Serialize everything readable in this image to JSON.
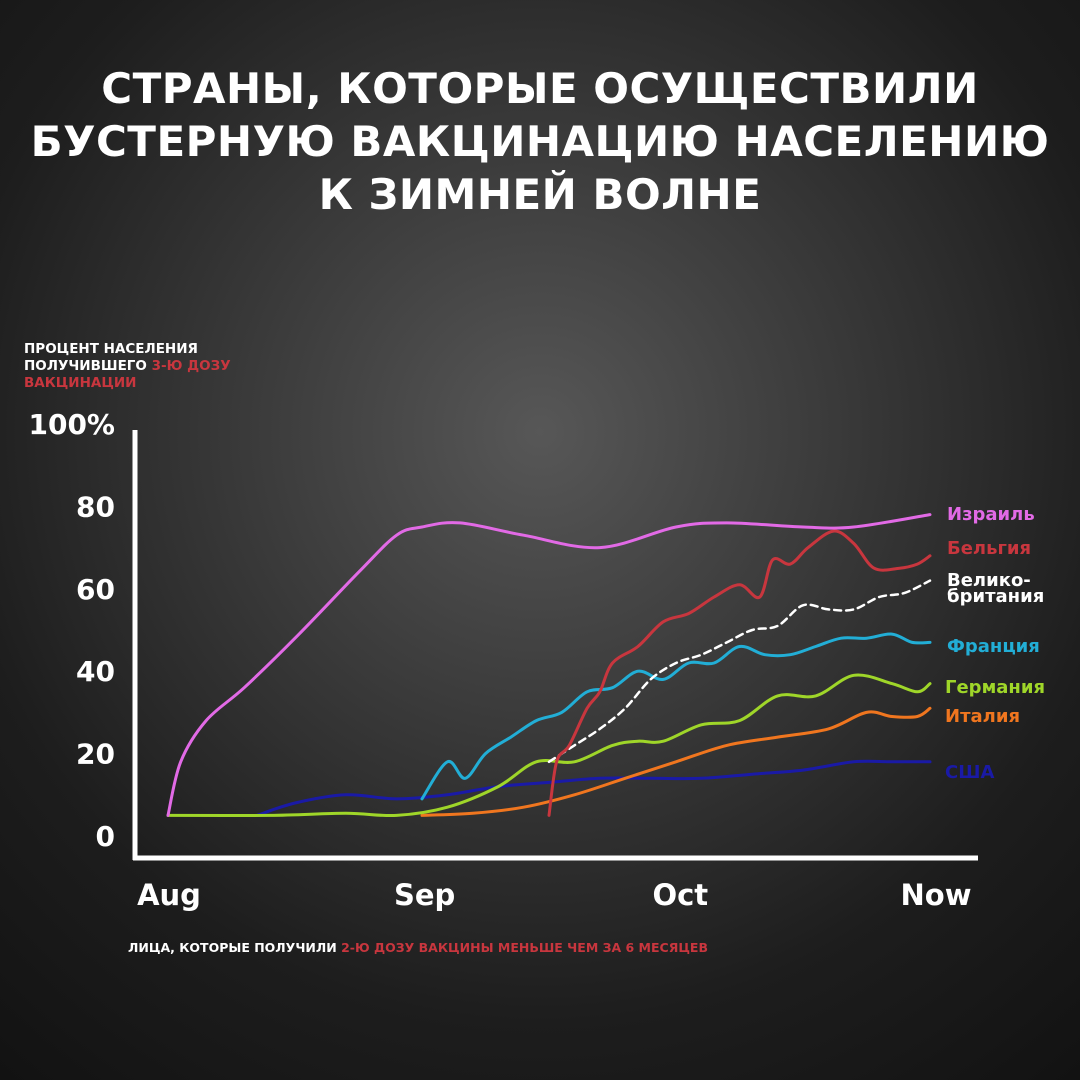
{
  "title": {
    "line1": "СТРАНЫ, КОТОРЫЕ ОСУЩЕСТВИЛИ",
    "line2": "БУСТЕРНУЮ ВАКЦИНАЦИЮ НАСЕЛЕНИЮ",
    "line3": "К ЗИМНЕЙ ВОЛНЕ"
  },
  "ylabel": {
    "line1": "ПРОЦЕНТ НАСЕЛЕНИЯ",
    "line2_white": "ПОЛУЧИВШЕГО ",
    "line2_red": "3-Ю ДОЗУ",
    "line3_red": "ВАКЦИНАЦИИ"
  },
  "footnote": {
    "white": "ЛИЦА, КОТОРЫЕ ПОЛУЧИЛИ ",
    "red": "2-Ю ДОЗУ ВАКЦИНЫ МЕНЬШЕ ЧЕМ ЗА 6 МЕСЯЦЕВ"
  },
  "colors": {
    "text": "#ffffff",
    "accent_red": "#c8363e"
  },
  "chart_data": {
    "type": "line",
    "xlim": [
      0,
      3
    ],
    "ylim": [
      0,
      100
    ],
    "x_ticks": [
      {
        "x": 0,
        "label": "Aug"
      },
      {
        "x": 1,
        "label": "Sep"
      },
      {
        "x": 2,
        "label": "Oct"
      },
      {
        "x": 3,
        "label": "Now"
      }
    ],
    "y_ticks": [
      {
        "y": 0,
        "label": "0"
      },
      {
        "y": 20,
        "label": "20"
      },
      {
        "y": 40,
        "label": "40"
      },
      {
        "y": 60,
        "label": "60"
      },
      {
        "y": 80,
        "label": "80"
      },
      {
        "y": 100,
        "label": "100%"
      }
    ],
    "series": [
      {
        "name": "Израиль",
        "color": "#e26ae6",
        "dashed": false,
        "x": [
          0,
          0.05,
          0.15,
          0.3,
          0.5,
          0.75,
          0.9,
          1.0,
          1.15,
          1.4,
          1.7,
          2.0,
          2.2,
          2.5,
          2.7,
          3.0
        ],
        "y": [
          5,
          18,
          28,
          36,
          48,
          64,
          73,
          75,
          76,
          73,
          70,
          75,
          76,
          75,
          75,
          78
        ]
      },
      {
        "name": "Бельгия",
        "color": "#c8363e",
        "dashed": false,
        "x": [
          1.5,
          1.53,
          1.58,
          1.65,
          1.7,
          1.75,
          1.85,
          1.95,
          2.05,
          2.15,
          2.25,
          2.33,
          2.38,
          2.45,
          2.52,
          2.62,
          2.7,
          2.78,
          2.88,
          2.95,
          3.0
        ],
        "y": [
          5,
          18,
          22,
          31,
          35,
          42,
          46,
          52,
          54,
          58,
          61,
          58,
          67,
          66,
          70,
          74,
          71,
          65,
          65,
          66,
          68
        ]
      },
      {
        "name": "Велико-британия",
        "color": "#ffffff",
        "dashed": true,
        "x": [
          1.5,
          1.6,
          1.7,
          1.8,
          1.9,
          2.0,
          2.1,
          2.2,
          2.3,
          2.4,
          2.5,
          2.6,
          2.7,
          2.8,
          2.9,
          3.0
        ],
        "y": [
          18,
          22,
          26,
          31,
          38,
          42,
          44,
          47,
          50,
          51,
          56,
          55,
          55,
          58,
          59,
          62
        ]
      },
      {
        "name": "Франция",
        "color": "#22aed6",
        "dashed": false,
        "x": [
          1.0,
          1.1,
          1.17,
          1.25,
          1.35,
          1.45,
          1.55,
          1.65,
          1.75,
          1.85,
          1.95,
          2.05,
          2.15,
          2.25,
          2.35,
          2.45,
          2.55,
          2.65,
          2.75,
          2.85,
          2.93,
          3.0
        ],
        "y": [
          9,
          18,
          14,
          20,
          24,
          28,
          30,
          35,
          36,
          40,
          38,
          42,
          42,
          46,
          44,
          44,
          46,
          48,
          48,
          49,
          47,
          47
        ]
      },
      {
        "name": "Германия",
        "color": "#9fd629",
        "dashed": false,
        "x": [
          0,
          0.4,
          0.7,
          0.9,
          1.1,
          1.3,
          1.45,
          1.6,
          1.75,
          1.85,
          1.95,
          2.1,
          2.25,
          2.4,
          2.55,
          2.7,
          2.85,
          2.95,
          3.0
        ],
        "y": [
          5,
          5,
          5.5,
          5,
          7,
          12,
          18,
          18,
          22,
          23,
          23,
          27,
          28,
          34,
          34,
          39,
          37,
          35,
          37
        ]
      },
      {
        "name": "Италия",
        "color": "#f0761f",
        "dashed": false,
        "x": [
          1.0,
          1.2,
          1.4,
          1.6,
          1.8,
          2.0,
          2.2,
          2.4,
          2.6,
          2.75,
          2.85,
          2.95,
          3.0
        ],
        "y": [
          5,
          5.5,
          7,
          10,
          14,
          18,
          22,
          24,
          26,
          30,
          29,
          29,
          31
        ]
      },
      {
        "name": "США",
        "color": "#1a1aa6",
        "dashed": false,
        "x": [
          0.35,
          0.5,
          0.7,
          0.9,
          1.1,
          1.3,
          1.5,
          1.7,
          1.9,
          2.1,
          2.3,
          2.5,
          2.7,
          2.85,
          3.0
        ],
        "y": [
          5,
          8,
          10,
          9,
          10,
          12,
          13,
          14,
          14,
          14,
          15,
          16,
          18,
          18,
          18
        ]
      }
    ],
    "labels": [
      {
        "series": "Израиль",
        "lines": [
          "Израиль"
        ]
      },
      {
        "series": "Бельгия",
        "lines": [
          "Бельгия"
        ]
      },
      {
        "series": "Велико-британия",
        "lines": [
          "Велико-",
          "британия"
        ]
      },
      {
        "series": "Франция",
        "lines": [
          "Франция"
        ]
      },
      {
        "series": "Германия",
        "lines": [
          "Германия"
        ]
      },
      {
        "series": "Италия",
        "lines": [
          "Италия"
        ]
      },
      {
        "series": "США",
        "lines": [
          "США"
        ]
      }
    ]
  }
}
